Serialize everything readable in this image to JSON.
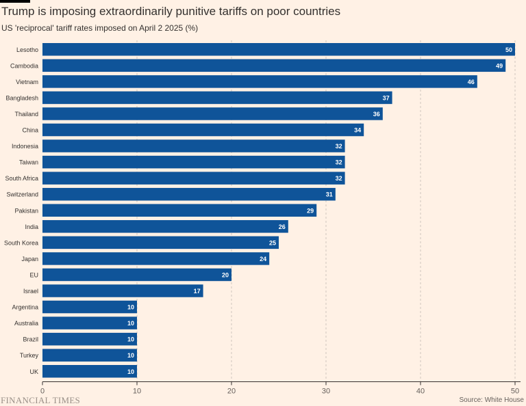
{
  "chart_data": {
    "type": "bar",
    "orientation": "horizontal",
    "title": "Trump is imposing extraordinarily punitive tariffs on poor countries",
    "subtitle": "US 'reciprocal' tariff rates imposed on April 2 2025 (%)",
    "categories": [
      "Lesotho",
      "Cambodia",
      "Vietnam",
      "Bangladesh",
      "Thailand",
      "China",
      "Indonesia",
      "Taiwan",
      "South Africa",
      "Switzerland",
      "Pakistan",
      "India",
      "South Korea",
      "Japan",
      "EU",
      "Israel",
      "Argentina",
      "Australia",
      "Brazil",
      "Turkey",
      "UK"
    ],
    "values": [
      50,
      49,
      46,
      37,
      36,
      34,
      32,
      32,
      32,
      31,
      29,
      26,
      25,
      24,
      20,
      17,
      10,
      10,
      10,
      10,
      10
    ],
    "xlim": [
      0,
      50
    ],
    "xticks": [
      0,
      10,
      20,
      30,
      40,
      50
    ],
    "grid": "vertical dashed",
    "bar_color": "#0f5499",
    "source": "Source: White House",
    "brand": "FINANCIAL TIMES"
  }
}
